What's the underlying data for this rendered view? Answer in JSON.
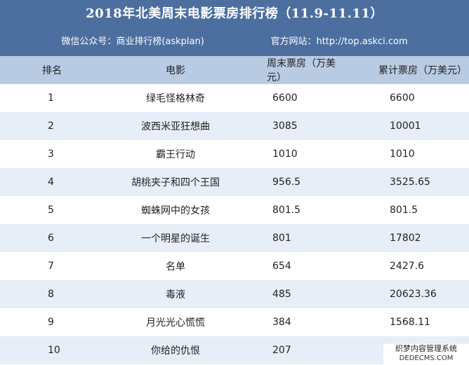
{
  "title": "2018年北美周末电影票房排行榜（11.9-11.11）",
  "wechat_label": "微信公众号：商业排行榜(askplan)",
  "website_label": "官方网站：http://top.askci.com",
  "columns": [
    "排名",
    "电影",
    "周末票房（万美元）",
    "累计票房（万美元）"
  ],
  "rows": [
    {
      "rank": "1",
      "movie": "绿毛怪格林奇",
      "weekend": "6600",
      "total": "6600"
    },
    {
      "rank": "2",
      "movie": "波西米亚狂想曲",
      "weekend": "3085",
      "total": "10001"
    },
    {
      "rank": "3",
      "movie": "霸王行动",
      "weekend": "1010",
      "total": "1010"
    },
    {
      "rank": "4",
      "movie": "胡桃夹子和四个王国",
      "weekend": "956.5",
      "total": "3525.65"
    },
    {
      "rank": "5",
      "movie": "蜘蛛网中的女孩",
      "weekend": "801.5",
      "total": "801.5"
    },
    {
      "rank": "6",
      "movie": "一个明星的诞生",
      "weekend": "801",
      "total": "17802"
    },
    {
      "rank": "7",
      "movie": "名单",
      "weekend": "654",
      "total": "2427.6"
    },
    {
      "rank": "8",
      "movie": "毒液",
      "weekend": "485",
      "total": "20623.36"
    },
    {
      "rank": "9",
      "movie": "月光光心慌慌",
      "weekend": "384",
      "total": "1568.11"
    },
    {
      "rank": "10",
      "movie": "你给的仇恨",
      "weekend": "207",
      "total": ""
    }
  ],
  "watermark": {
    "line1": "织梦内容管理系统",
    "line2": "DEDECMS.COM"
  },
  "colors": {
    "header_bg": "#4c6fa0",
    "col_header_bg": "#b9cae3",
    "stripe_bg": "#e7eef8"
  }
}
